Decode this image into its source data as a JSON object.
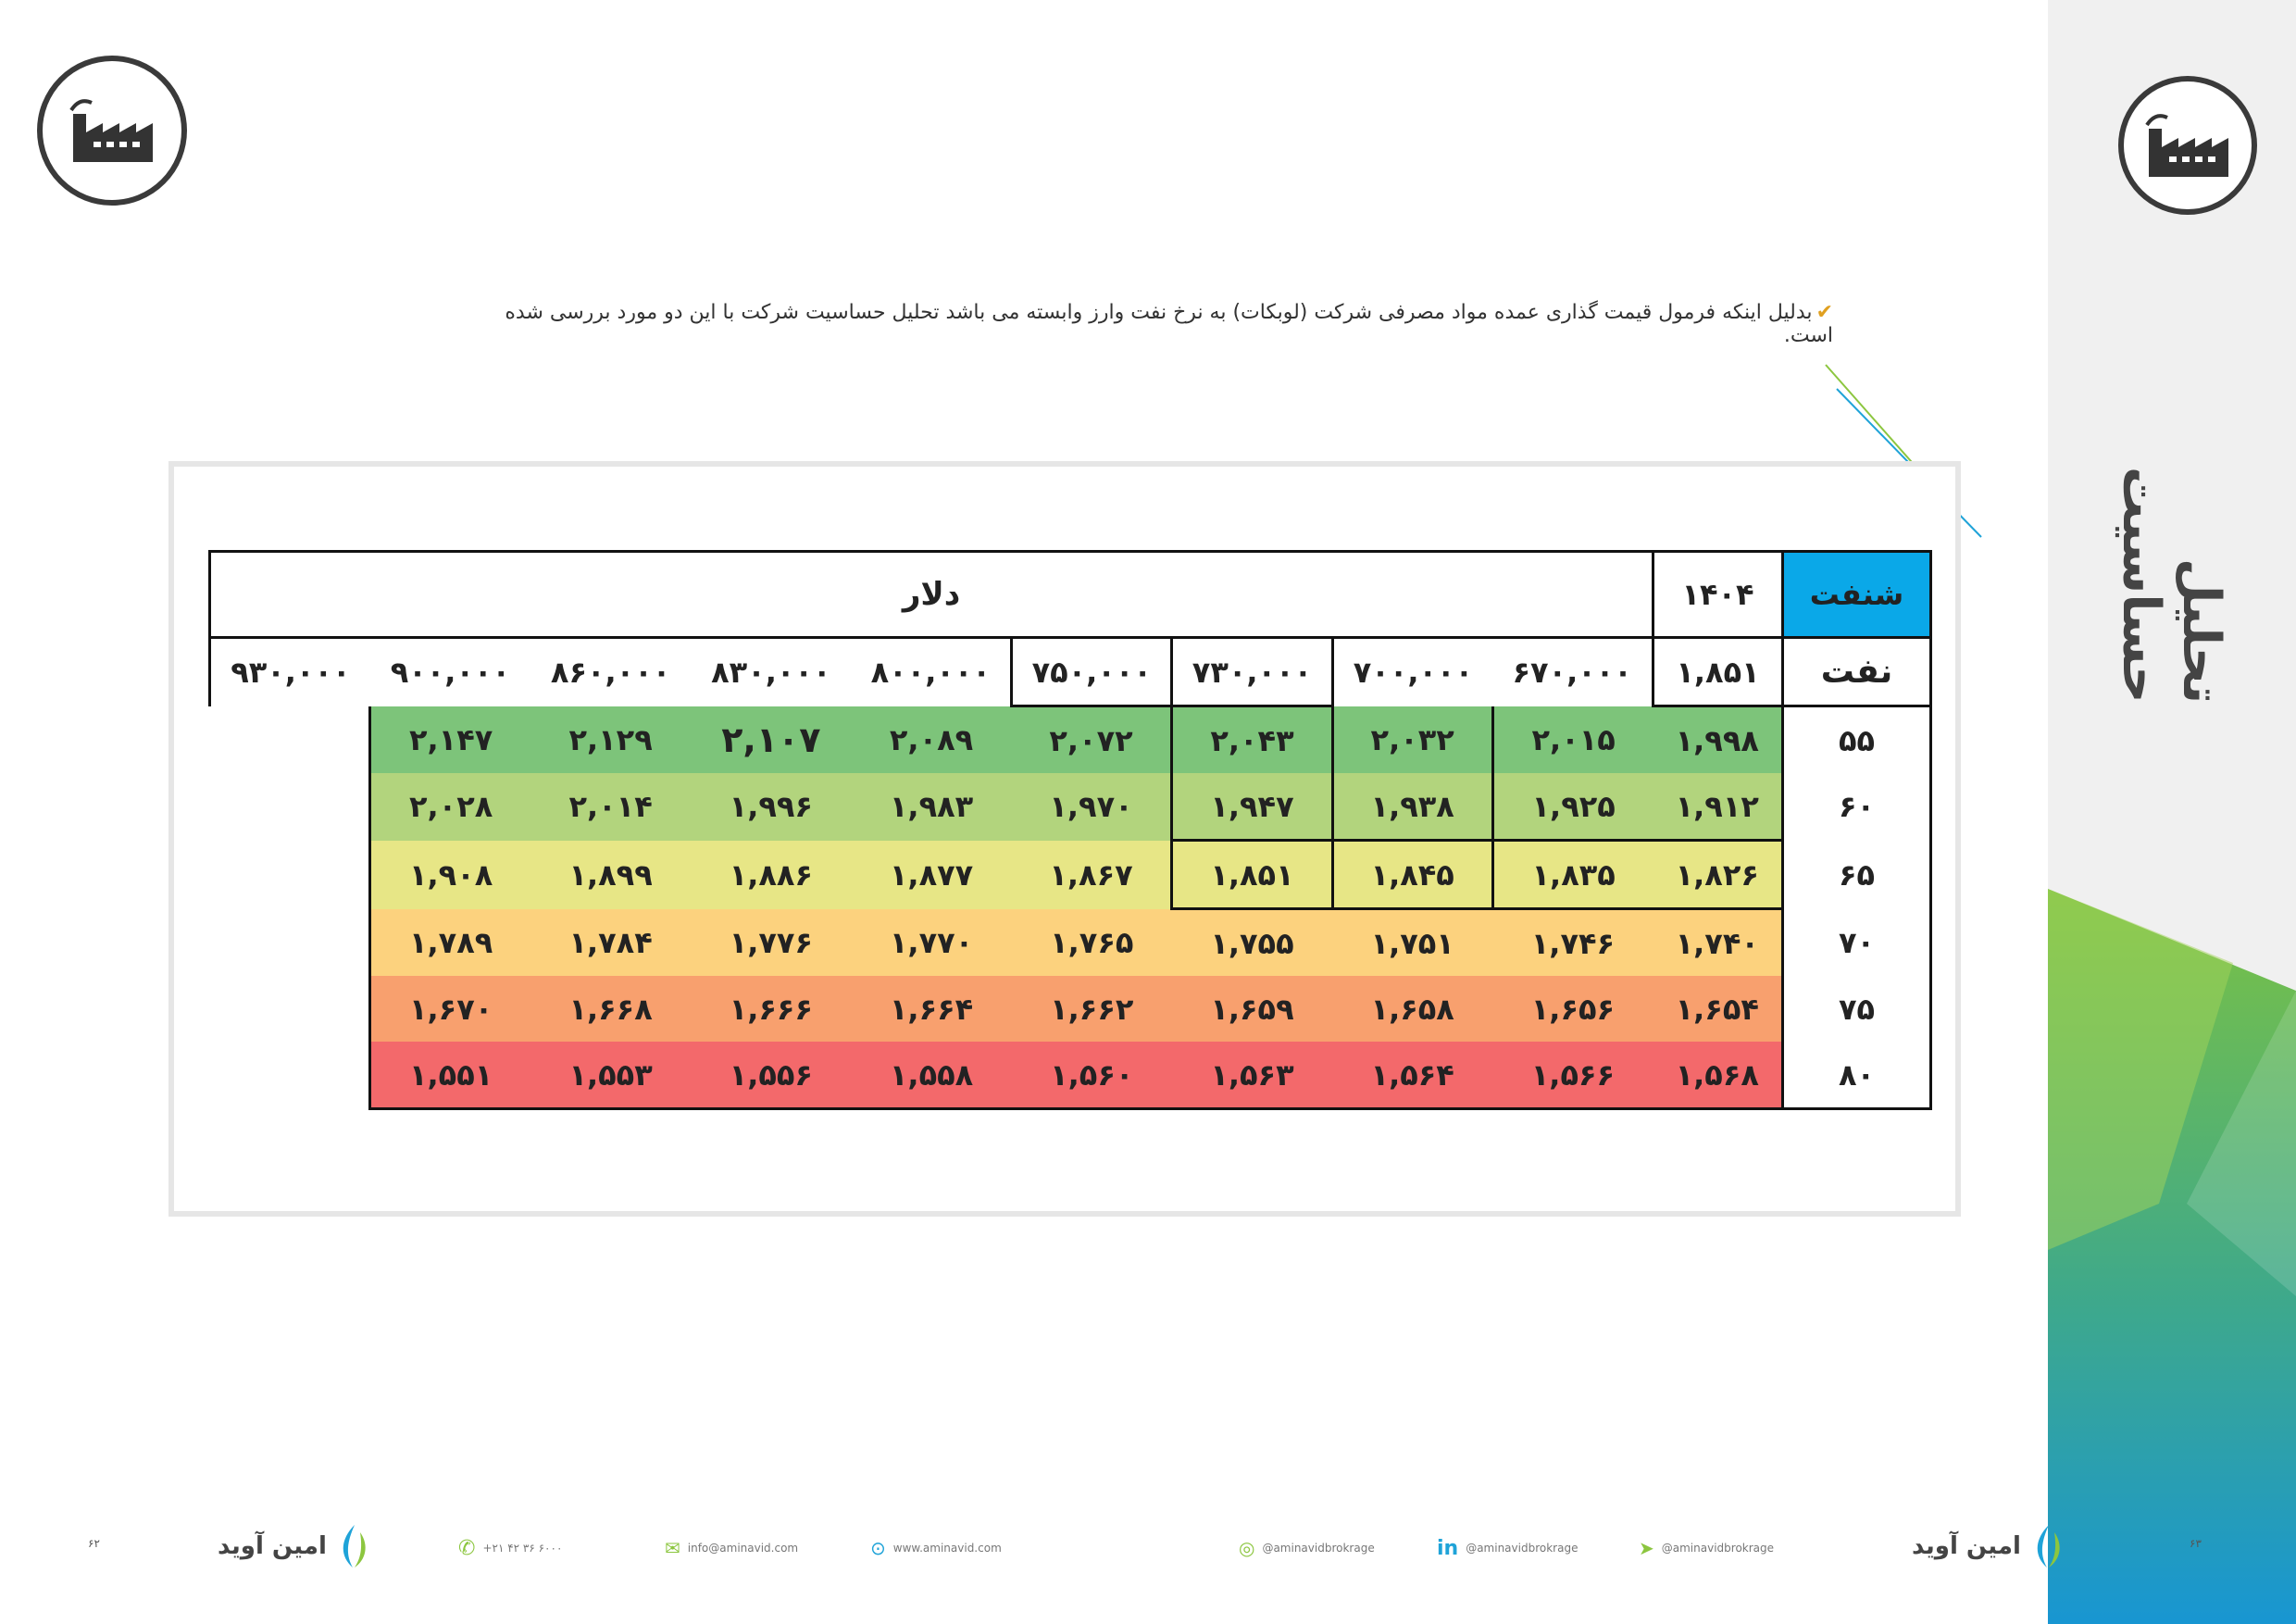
{
  "page": {
    "side_title": "تحلیل حساسیت",
    "intro_text": "بدلیل اینکه فرمول قیمت گذاری عمده مواد مصرفی شرکت (لوبکات) به نرخ نفت وارز وابسته می باشد تحلیل حساسیت شرکت با این دو مورد بررسی شده است.",
    "check_icon": "check-icon"
  },
  "table": {
    "company": "شنفت",
    "year": "۱۴۰۴",
    "col_group_label": "دلار",
    "row_group_label": "نفت",
    "base_value": "۱,۸۵۱",
    "columns": [
      "۶۷۰,۰۰۰",
      "۷۰۰,۰۰۰",
      "۷۳۰,۰۰۰",
      "۷۵۰,۰۰۰",
      "۸۰۰,۰۰۰",
      "۸۳۰,۰۰۰",
      "۸۶۰,۰۰۰",
      "۹۰۰,۰۰۰",
      "۹۳۰,۰۰۰"
    ],
    "rows": [
      {
        "label": "۵۵",
        "values": [
          "۱,۹۹۸",
          "۲,۰۱۵",
          "۲,۰۳۲",
          "۲,۰۴۳",
          "۲,۰۷۲",
          "۲,۰۸۹",
          "۲,۱۰۷",
          "۲,۱۲۹",
          "۲,۱۴۷"
        ]
      },
      {
        "label": "۶۰",
        "values": [
          "۱,۹۱۲",
          "۱,۹۲۵",
          "۱,۹۳۸",
          "۱,۹۴۷",
          "۱,۹۷۰",
          "۱,۹۸۳",
          "۱,۹۹۶",
          "۲,۰۱۴",
          "۲,۰۲۸"
        ]
      },
      {
        "label": "۶۵",
        "values": [
          "۱,۸۲۶",
          "۱,۸۳۵",
          "۱,۸۴۵",
          "۱,۸۵۱",
          "۱,۸۶۷",
          "۱,۸۷۷",
          "۱,۸۸۶",
          "۱,۸۹۹",
          "۱,۹۰۸"
        ]
      },
      {
        "label": "۷۰",
        "values": [
          "۱,۷۴۰",
          "۱,۷۴۶",
          "۱,۷۵۱",
          "۱,۷۵۵",
          "۱,۷۶۵",
          "۱,۷۷۰",
          "۱,۷۷۶",
          "۱,۷۸۴",
          "۱,۷۸۹"
        ]
      },
      {
        "label": "۷۵",
        "values": [
          "۱,۶۵۴",
          "۱,۶۵۶",
          "۱,۶۵۸",
          "۱,۶۵۹",
          "۱,۶۶۲",
          "۱,۶۶۴",
          "۱,۶۶۶",
          "۱,۶۶۸",
          "۱,۶۷۰"
        ]
      },
      {
        "label": "۸۰",
        "values": [
          "۱,۵۶۸",
          "۱,۵۶۶",
          "۱,۵۶۴",
          "۱,۵۶۳",
          "۱,۵۶۰",
          "۱,۵۵۸",
          "۱,۵۵۶",
          "۱,۵۵۳",
          "۱,۵۵۱"
        ]
      }
    ],
    "row_colors": [
      "#7dc47a",
      "#b2d47d",
      "#e7e686",
      "#fcd27e",
      "#f8a06e",
      "#f3696b"
    ]
  },
  "footer": {
    "page_left": "۶۲",
    "page_right": "۶۳",
    "brand_name": "امین آوید",
    "phone": "+۲۱ ۴۲ ۳۶ ۶۰۰۰",
    "email": "info@aminavid.com",
    "website": "www.aminavid.com",
    "instagram": "@aminavidbrokrage",
    "linkedin": "@aminavidbrokrage",
    "telegram": "@aminavidbrokrage"
  },
  "colors": {
    "accent_blue": "#0aa8e8",
    "green": "#7cc242",
    "sidebar_bg": "#f0f0f0"
  }
}
